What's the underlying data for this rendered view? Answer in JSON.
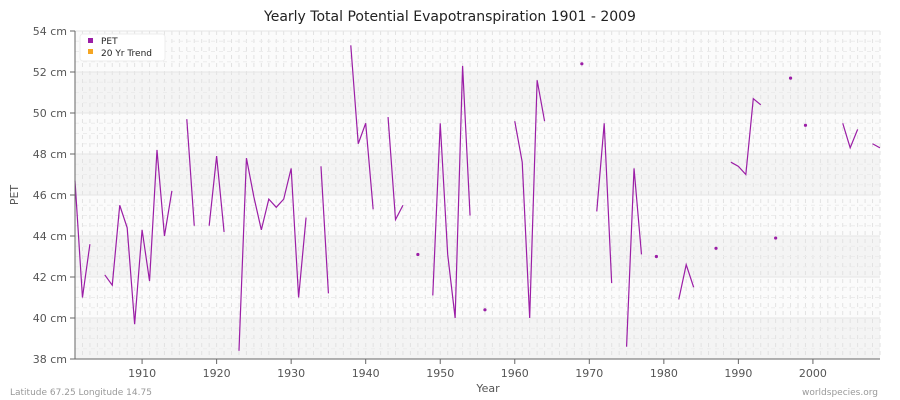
{
  "chart_data": {
    "type": "line",
    "title": "Yearly Total Potential Evapotranspiration 1901 - 2009",
    "xlabel": "Year",
    "ylabel": "PET",
    "xlim": [
      1901,
      2009
    ],
    "ylim": [
      38,
      54
    ],
    "x_ticks": [
      1910,
      1920,
      1930,
      1940,
      1950,
      1960,
      1970,
      1980,
      1990,
      2000
    ],
    "y_ticks": [
      38,
      40,
      42,
      44,
      46,
      48,
      50,
      52,
      54
    ],
    "y_tick_labels": [
      "38 cm",
      "40 cm",
      "42 cm",
      "44 cm",
      "46 cm",
      "48 cm",
      "50 cm",
      "52 cm",
      "54 cm"
    ],
    "grid": true,
    "legend": {
      "position": "top-left",
      "entries": [
        {
          "label": "PET",
          "color": "#9b1ea6"
        },
        {
          "label": "20 Yr Trend",
          "color": "#f5a623"
        }
      ]
    },
    "series": [
      {
        "name": "PET",
        "color": "#9b1ea6",
        "points": [
          [
            1901,
            46.7
          ],
          [
            1902,
            41.0
          ],
          [
            1903,
            43.6
          ],
          [
            1904,
            null
          ],
          [
            1905,
            42.1
          ],
          [
            1906,
            41.6
          ],
          [
            1907,
            45.5
          ],
          [
            1908,
            44.4
          ],
          [
            1909,
            39.7
          ],
          [
            1910,
            44.3
          ],
          [
            1911,
            41.8
          ],
          [
            1912,
            48.2
          ],
          [
            1913,
            44.0
          ],
          [
            1914,
            46.2
          ],
          [
            1915,
            null
          ],
          [
            1916,
            49.7
          ],
          [
            1917,
            44.5
          ],
          [
            1918,
            null
          ],
          [
            1919,
            44.5
          ],
          [
            1920,
            47.9
          ],
          [
            1921,
            44.2
          ],
          [
            1922,
            null
          ],
          [
            1923,
            38.4
          ],
          [
            1924,
            47.8
          ],
          [
            1925,
            45.9
          ],
          [
            1926,
            44.3
          ],
          [
            1927,
            45.8
          ],
          [
            1928,
            45.4
          ],
          [
            1929,
            45.8
          ],
          [
            1930,
            47.3
          ],
          [
            1931,
            41.0
          ],
          [
            1932,
            44.9
          ],
          [
            1933,
            null
          ],
          [
            1934,
            47.4
          ],
          [
            1935,
            41.2
          ],
          [
            1936,
            null
          ],
          [
            1937,
            null
          ],
          [
            1938,
            53.3
          ],
          [
            1939,
            48.5
          ],
          [
            1940,
            49.5
          ],
          [
            1941,
            45.3
          ],
          [
            1942,
            null
          ],
          [
            1943,
            49.8
          ],
          [
            1944,
            44.8
          ],
          [
            1945,
            45.5
          ],
          [
            1946,
            null
          ],
          [
            1947,
            43.1
          ],
          [
            1948,
            null
          ],
          [
            1949,
            41.1
          ],
          [
            1950,
            49.5
          ],
          [
            1951,
            43.1
          ],
          [
            1952,
            40.0
          ],
          [
            1953,
            52.3
          ],
          [
            1954,
            45.0
          ],
          [
            1955,
            null
          ],
          [
            1956,
            40.4
          ],
          [
            1957,
            null
          ],
          [
            1958,
            null
          ],
          [
            1959,
            null
          ],
          [
            1960,
            49.6
          ],
          [
            1961,
            47.6
          ],
          [
            1962,
            40.0
          ],
          [
            1963,
            51.6
          ],
          [
            1964,
            49.6
          ],
          [
            1965,
            null
          ],
          [
            1966,
            null
          ],
          [
            1967,
            null
          ],
          [
            1968,
            null
          ],
          [
            1969,
            52.4
          ],
          [
            1970,
            null
          ],
          [
            1971,
            45.2
          ],
          [
            1972,
            49.5
          ],
          [
            1973,
            41.7
          ],
          [
            1974,
            null
          ],
          [
            1975,
            38.6
          ],
          [
            1976,
            47.3
          ],
          [
            1977,
            43.1
          ],
          [
            1978,
            null
          ],
          [
            1979,
            43.0
          ],
          [
            1980,
            null
          ],
          [
            1981,
            null
          ],
          [
            1982,
            40.9
          ],
          [
            1983,
            42.6
          ],
          [
            1984,
            41.5
          ],
          [
            1985,
            null
          ],
          [
            1986,
            null
          ],
          [
            1987,
            43.4
          ],
          [
            1988,
            null
          ],
          [
            1989,
            47.6
          ],
          [
            1990,
            47.4
          ],
          [
            1991,
            47.0
          ],
          [
            1992,
            50.7
          ],
          [
            1993,
            50.4
          ],
          [
            1994,
            null
          ],
          [
            1995,
            43.9
          ],
          [
            1996,
            null
          ],
          [
            1997,
            51.7
          ],
          [
            1998,
            null
          ],
          [
            1999,
            49.4
          ],
          [
            2000,
            null
          ],
          [
            2001,
            null
          ],
          [
            2002,
            null
          ],
          [
            2003,
            null
          ],
          [
            2004,
            49.5
          ],
          [
            2005,
            48.3
          ],
          [
            2006,
            49.2
          ],
          [
            2007,
            null
          ],
          [
            2008,
            48.5
          ],
          [
            2009,
            48.3
          ]
        ]
      }
    ]
  },
  "footer": {
    "left": "Latitude 67.25 Longitude 14.75",
    "right": "worldspecies.org"
  }
}
